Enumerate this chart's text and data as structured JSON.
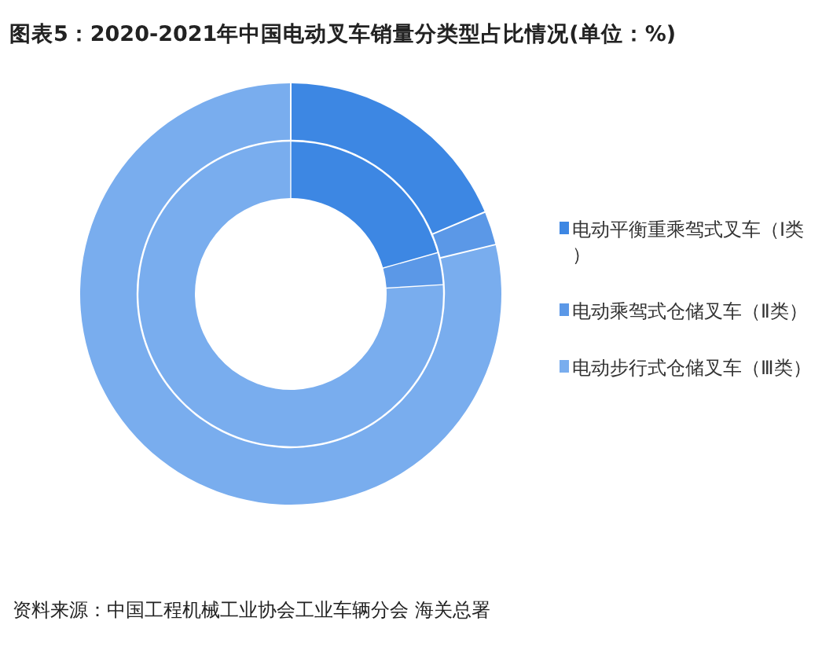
{
  "chart_data": {
    "type": "donut",
    "title": "图表5：2020-2021年中国电动叉车销量分类型占比情况(单位：%)",
    "categories": [
      "电动平衡重乘驾式叉车（Ⅰ类）",
      "电动乘驾式仓储叉车（Ⅱ类）",
      "电动步行式仓储叉车（Ⅲ类）"
    ],
    "colors": [
      "#3d87e3",
      "#5b98e7",
      "#79adee"
    ],
    "series": [
      {
        "values": [
          18.6,
          2.5,
          78.9
        ]
      },
      {
        "values": [
          20.6,
          3.3,
          76.1
        ]
      }
    ],
    "legend": "right",
    "annotations": [
      "资料来源：中国工程机械工业协会工业车辆分会 海关总署"
    ]
  }
}
